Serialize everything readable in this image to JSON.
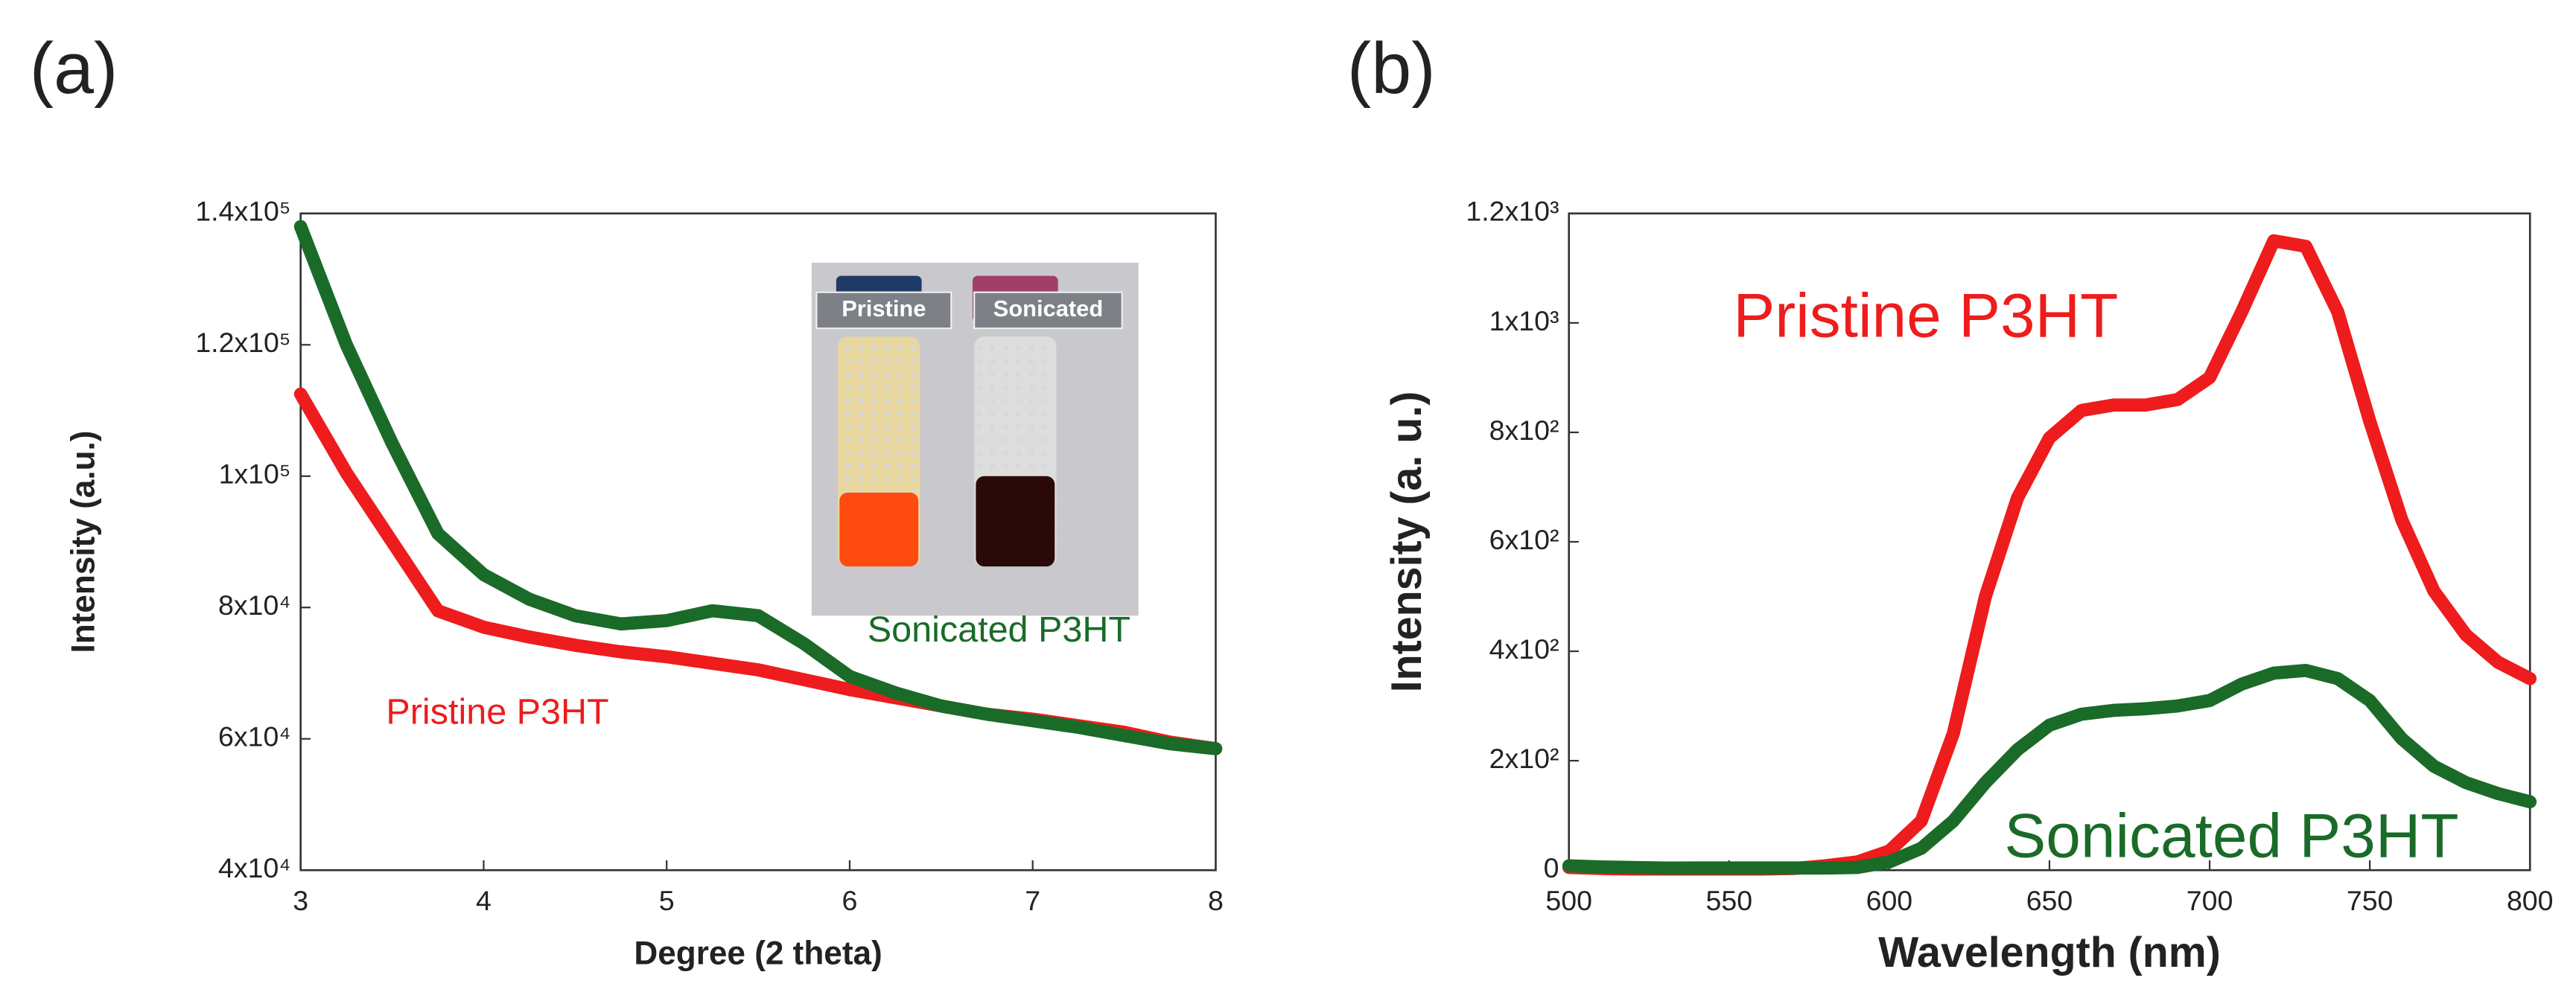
{
  "chart_data": [
    {
      "type": "line",
      "panel": "(a)",
      "xlabel": "Degree (2 theta)",
      "ylabel": "Intensity (a.u.)",
      "x": [
        3,
        3.25,
        3.5,
        3.75,
        4,
        4.25,
        4.5,
        4.75,
        5,
        5.25,
        5.5,
        5.75,
        6,
        6.25,
        6.5,
        6.75,
        7,
        7.25,
        7.5,
        7.75,
        8
      ],
      "series": [
        {
          "name": "Pristine P3HT",
          "color": "#ee1c1c",
          "values": [
            112500,
            100500,
            90000,
            79500,
            77000,
            75500,
            74250,
            73250,
            72500,
            71500,
            70500,
            69000,
            67500,
            66250,
            65000,
            63750,
            63000,
            62000,
            61000,
            59500,
            58500
          ]
        },
        {
          "name": "Sonicated P3HT",
          "color": "#1a6b28",
          "values": [
            138000,
            120000,
            105000,
            91250,
            85000,
            81250,
            78750,
            77500,
            78000,
            79500,
            78750,
            74500,
            69500,
            67000,
            65000,
            63750,
            62750,
            61750,
            60500,
            59250,
            58500
          ]
        }
      ],
      "xlim": [
        3,
        8
      ],
      "xticks": [
        3,
        4,
        5,
        6,
        7,
        8
      ],
      "ylim": [
        40000,
        140000
      ],
      "yticks": [
        {
          "value": 40000,
          "label": "4x10⁴"
        },
        {
          "value": 60000,
          "label": "6x10⁴"
        },
        {
          "value": 80000,
          "label": "8x10⁴"
        },
        {
          "value": 100000,
          "label": "1x10⁵"
        },
        {
          "value": 120000,
          "label": "1.2x10⁵"
        },
        {
          "value": 140000,
          "label": "1.4x10⁵"
        }
      ],
      "inset_labels": [
        "Pristine",
        "Sonicated"
      ]
    },
    {
      "type": "line",
      "panel": "(b)",
      "xlabel": "Wavelength (nm)",
      "ylabel": "Intensity  (a. u.)",
      "x": [
        500,
        510,
        520,
        530,
        540,
        550,
        560,
        570,
        580,
        590,
        600,
        610,
        620,
        630,
        640,
        650,
        660,
        670,
        680,
        690,
        700,
        710,
        720,
        730,
        740,
        750,
        760,
        770,
        780,
        790,
        800
      ],
      "series": [
        {
          "name": "Pristine P3HT",
          "color": "#ee1c1c",
          "values": [
            5,
            3,
            2,
            2,
            2,
            2,
            2,
            3,
            8,
            15,
            35,
            90,
            250,
            500,
            680,
            790,
            840,
            850,
            850,
            860,
            900,
            1020,
            1150,
            1140,
            1020,
            820,
            640,
            510,
            430,
            380,
            350
          ]
        },
        {
          "name": "Sonicated P3HT",
          "color": "#1a6b28",
          "values": [
            8,
            6,
            5,
            4,
            4,
            4,
            4,
            4,
            4,
            5,
            15,
            40,
            90,
            160,
            220,
            265,
            285,
            292,
            295,
            300,
            310,
            340,
            360,
            365,
            350,
            310,
            240,
            190,
            160,
            140,
            125
          ]
        }
      ],
      "xlim": [
        500,
        800
      ],
      "xticks": [
        500,
        550,
        600,
        650,
        700,
        750,
        800
      ],
      "ylim": [
        0,
        1200
      ],
      "yticks": [
        0,
        {
          "value": 200,
          "label": "2x10²"
        },
        {
          "value": 400,
          "label": "4x10²"
        },
        {
          "value": 600,
          "label": "6x10²"
        },
        {
          "value": 800,
          "label": "8x10²"
        },
        {
          "value": 1000,
          "label": "1x10³"
        },
        {
          "value": 1200,
          "label": "1.2x10³"
        }
      ]
    }
  ]
}
